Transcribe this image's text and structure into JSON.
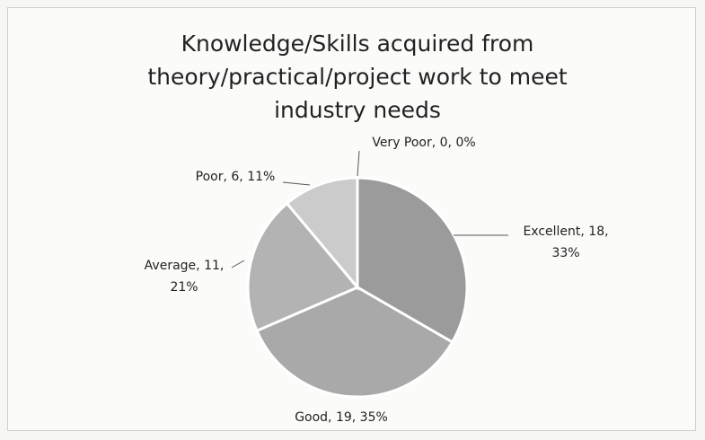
{
  "chart_data": {
    "type": "pie",
    "title": "Knowledge/Skills acquired from theory/practical/project work to meet industry needs",
    "values": [
      18,
      19,
      11,
      6,
      0
    ],
    "value_labels": [
      "Excellent, 18, 33%",
      "Good, 19, 35%",
      "Average, 11, 21%",
      "Poor, 6, 11%",
      "Very Poor, 0, 0%"
    ],
    "colors": [
      "#9b9b9b",
      "#a9a9a9",
      "#b3b3b3",
      "#cbcbcb",
      "#d8d8d8"
    ]
  }
}
